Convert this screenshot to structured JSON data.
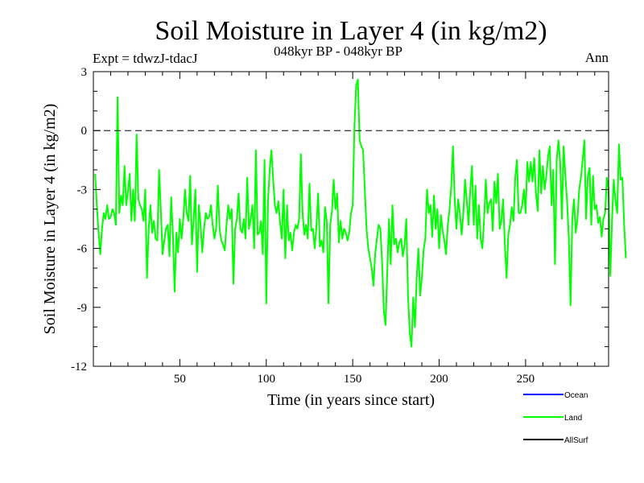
{
  "chart_data": {
    "type": "line",
    "title": "Soil Moisture in Layer 4 (in kg/m2)",
    "subtitle": "048kyr BP - 048kyr BP",
    "experiment": "Expt = tdwzJ-tdacJ",
    "season": "Ann",
    "xlabel": "Time (in years since start)",
    "ylabel": "Soil Moisture in Layer 4 (in kg/m2)",
    "xlim": [
      0,
      298
    ],
    "ylim": [
      -12,
      3
    ],
    "x_ticks": [
      50,
      100,
      150,
      200,
      250
    ],
    "y_ticks": [
      3,
      0,
      -3,
      -6,
      -9,
      -12
    ],
    "x_tick_labels": [
      "50",
      "100",
      "150",
      "200",
      "250"
    ],
    "y_tick_labels": [
      "3",
      "0",
      "-3",
      "-6",
      "-9",
      "-12"
    ],
    "reference_line": 0,
    "legend": [
      {
        "name": "Ocean",
        "color": "#0000ff"
      },
      {
        "name": "Land",
        "color": "#00ff00"
      },
      {
        "name": "AllSurf",
        "color": "#000000"
      }
    ],
    "series": [
      {
        "name": "Land",
        "color": "#00ff00",
        "x_start": 1,
        "x_step": 1,
        "values": [
          -2.2,
          -3.8,
          -5.2,
          -6.3,
          -5.0,
          -4.2,
          -4.5,
          -3.8,
          -4.5,
          -4.4,
          -4.0,
          -4.2,
          -4.8,
          1.7,
          -4.2,
          -3.3,
          -3.8,
          -1.8,
          -3.8,
          -3.1,
          -2.2,
          -4.6,
          -3.0,
          -4.6,
          -0.2,
          -3.5,
          -3.8,
          -4.0,
          -4.6,
          -3.0,
          -7.5,
          -5.0,
          -3.8,
          -5.2,
          -4.6,
          -5.5,
          -5.6,
          -2.0,
          -4.0,
          -6.3,
          -5.6,
          -5.0,
          -4.8,
          -6.4,
          -3.4,
          -5.3,
          -8.2,
          -5.2,
          -6.2,
          -4.5,
          -5.5,
          -4.5,
          -3.0,
          -4.2,
          -4.6,
          -2.3,
          -5.8,
          -4.5,
          -3.0,
          -7.2,
          -3.8,
          -4.8,
          -6.2,
          -5.0,
          -4.2,
          -4.5,
          -4.4,
          -3.8,
          -4.8,
          -5.5,
          -5.0,
          -2.8,
          -5.0,
          -5.6,
          -5.8,
          -6.1,
          -4.8,
          -3.8,
          -4.5,
          -4.0,
          -7.8,
          -5.0,
          -4.5,
          -3.2,
          -5.0,
          -5.2,
          -4.5,
          -5.5,
          -2.4,
          -5.0,
          -4.5,
          -3.8,
          -6.0,
          -1.0,
          -5.3,
          -5.2,
          -4.6,
          -6.3,
          -1.5,
          -8.8,
          -3.6,
          -2.0,
          -1.0,
          -2.5,
          -3.8,
          -4.2,
          -3.6,
          -4.7,
          -5.5,
          -3.0,
          -6.5,
          -3.8,
          -5.6,
          -5.2,
          -6.1,
          -5.2,
          -4.8,
          -5.0,
          -4.5,
          -1.2,
          -4.2,
          -5.3,
          -4.8,
          -5.5,
          -2.7,
          -5.1,
          -5.0,
          -6.0,
          -4.9,
          -3.2,
          -5.9,
          -5.6,
          -6.2,
          -3.9,
          -4.6,
          -8.8,
          -4.8,
          -4.1,
          -2.5,
          -4.0,
          -3.2,
          -5.7,
          -4.6,
          -5.5,
          -5.0,
          -5.2,
          -5.6,
          -5.2,
          -4.2,
          -3.8,
          0.2,
          2.3,
          2.6,
          -0.5,
          -0.8,
          -1.0,
          -3.0,
          -5.0,
          -6.0,
          -6.5,
          -7.0,
          -7.9,
          -6.3,
          -5.5,
          -4.8,
          -5.0,
          -6.7,
          -9.2,
          -9.9,
          -7.2,
          -4.5,
          -6.8,
          -3.8,
          -5.8,
          -5.5,
          -6.2,
          -5.7,
          -5.5,
          -6.4,
          -5.8,
          -4.5,
          -8.4,
          -10.3,
          -11.0,
          -8.5,
          -10.0,
          -7.5,
          -6.0,
          -8.4,
          -7.5,
          -6.1,
          -5.5,
          -3.0,
          -4.2,
          -3.8,
          -5.4,
          -3.3,
          -5.0,
          -4.0,
          -6.0,
          -4.3,
          -5.1,
          -5.6,
          -6.3,
          -4.8,
          -4.0,
          -2.8,
          -0.8,
          -3.5,
          -5.0,
          -3.5,
          -4.2,
          -5.3,
          -4.2,
          -2.5,
          -3.6,
          -4.8,
          -3.0,
          -1.8,
          -4.8,
          -2.8,
          -5.5,
          -3.8,
          -5.5,
          -6.0,
          -4.5,
          -2.5,
          -4.2,
          -3.7,
          -3.5,
          -5.1,
          -2.6,
          -3.7,
          -2.2,
          -5.0,
          -4.6,
          -3.5,
          -5.8,
          -7.5,
          -5.3,
          -4.8,
          -3.9,
          -4.6,
          -2.4,
          -1.5,
          -4.2,
          -4.2,
          -3.8,
          -3.0,
          -4.2,
          -1.6,
          -2.6,
          -1.6,
          -2.6,
          -1.4,
          -3.2,
          -4.1,
          -1.0,
          -3.2,
          -1.8,
          -3.0,
          -2.3,
          -1.3,
          -0.8,
          -3.8,
          -2.0,
          -6.8,
          -1.5,
          -0.5,
          -1.6,
          -4.5,
          -0.8,
          -2.3,
          -3.6,
          -5.5,
          -8.9,
          -4.5,
          -3.5,
          -5.2,
          -4.5,
          -3.0,
          -2.4,
          -1.5,
          -0.5,
          -4.5,
          -2.3,
          -1.9,
          -4.8,
          -2.3,
          -4.0,
          -3.8,
          -4.7,
          -4.4,
          -5.4,
          -4.5,
          -4.2,
          -2.4,
          -3.0,
          -7.4,
          -4.5,
          -2.5,
          -3.6,
          -4.2,
          -0.7,
          -2.5,
          -2.4,
          -4.8,
          -6.5
        ]
      }
    ]
  }
}
